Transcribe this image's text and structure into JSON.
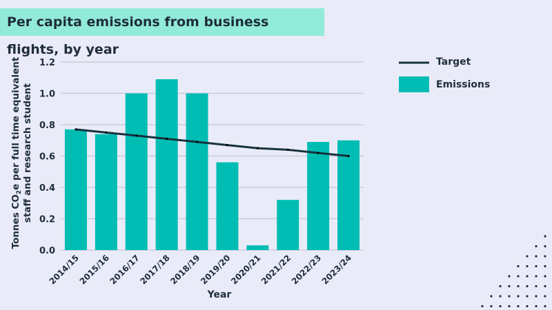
{
  "chart_data": {
    "type": "bar",
    "title": "Per capita emissions from business flights, by year",
    "xlabel": "Year",
    "ylabel_parts": {
      "pre": "Tonnes CO",
      "sub": "2",
      "post": "e per full time equivalent",
      "line2": "staff and research student"
    },
    "categories": [
      "2014/15",
      "2015/16",
      "2016/17",
      "2017/18",
      "2018/19",
      "2019/20",
      "2020/21",
      "2021/22",
      "2022/23",
      "2023/24"
    ],
    "series": [
      {
        "name": "Emissions",
        "type": "bar",
        "color": "#00bdb4",
        "values": [
          0.77,
          0.74,
          1.0,
          1.09,
          1.0,
          0.56,
          0.03,
          0.32,
          0.69,
          0.7
        ]
      },
      {
        "name": "Target",
        "type": "line",
        "color": "#16323d",
        "values": [
          0.77,
          0.75,
          0.73,
          0.71,
          0.69,
          0.67,
          0.65,
          0.64,
          0.62,
          0.6
        ]
      }
    ],
    "ylim": [
      0,
      1.2
    ],
    "yticks": [
      "0.0",
      "0.2",
      "0.4",
      "0.6",
      "0.8",
      "1.0",
      "1.2"
    ],
    "grid": true,
    "legend": "top-right"
  }
}
